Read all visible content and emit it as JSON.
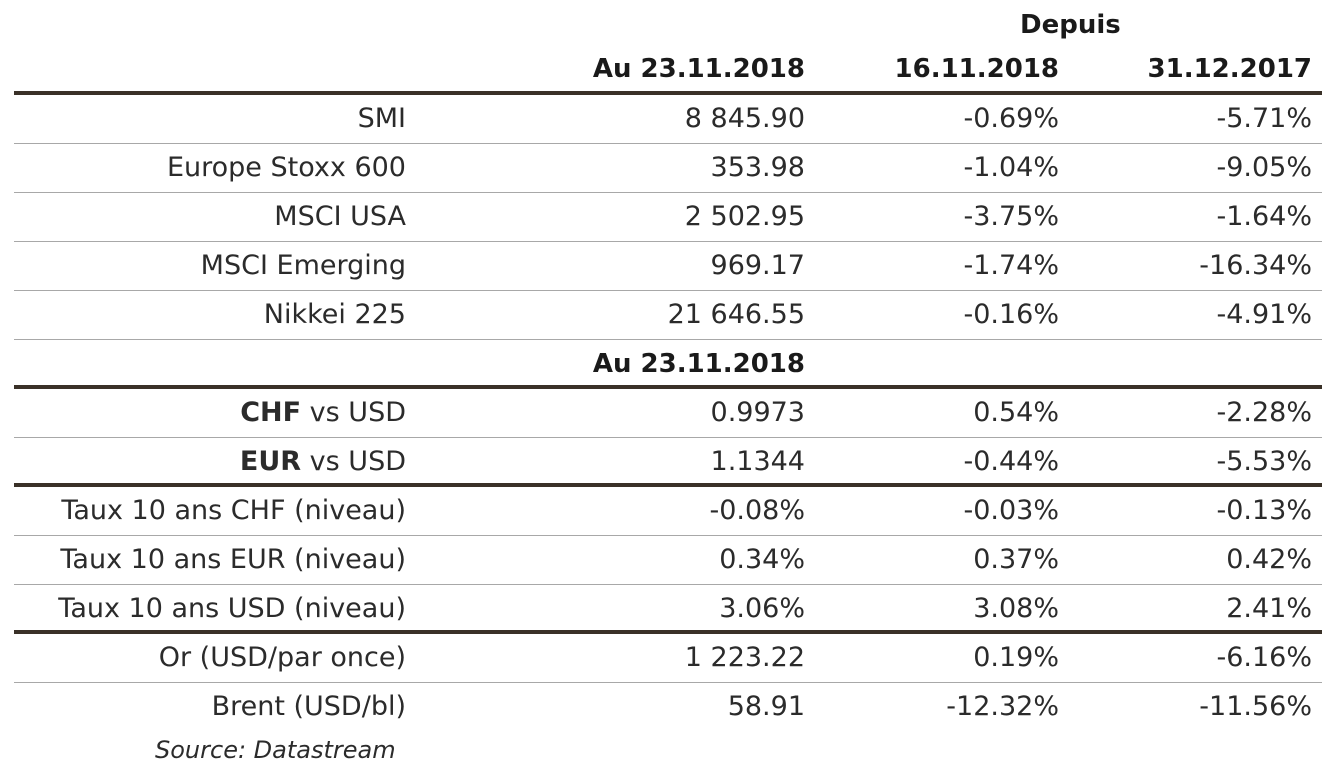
{
  "header": {
    "depuis": "Depuis",
    "col1": "Au 23.11.2018",
    "col2": "16.11.2018",
    "col3": "31.12.2017"
  },
  "rows_indices": [
    {
      "label": "SMI",
      "v1": "8 845.90",
      "v2": "-0.69%",
      "v3": "-5.71%"
    },
    {
      "label": "Europe Stoxx 600",
      "v1": "353.98",
      "v2": "-1.04%",
      "v3": "-9.05%"
    },
    {
      "label": "MSCI USA",
      "v1": "2 502.95",
      "v2": "-3.75%",
      "v3": "-1.64%"
    },
    {
      "label": "MSCI Emerging",
      "v1": "969.17",
      "v2": "-1.74%",
      "v3": "-16.34%"
    },
    {
      "label": "Nikkei 225",
      "v1": "21 646.55",
      "v2": "-0.16%",
      "v3": "-4.91%"
    }
  ],
  "subheader": {
    "label": "Au 23.11.2018"
  },
  "rows_fx": [
    {
      "currency": "CHF",
      "rest": " vs USD",
      "v1": "0.9973",
      "v2": "0.54%",
      "v3": "-2.28%"
    },
    {
      "currency": "EUR",
      "rest": " vs USD",
      "v1": "1.1344",
      "v2": "-0.44%",
      "v3": "-5.53%"
    }
  ],
  "rows_rates": [
    {
      "label": "Taux 10 ans CHF (niveau)",
      "v1": "-0.08%",
      "v2": "-0.03%",
      "v3": "-0.13%"
    },
    {
      "label": "Taux 10 ans EUR (niveau)",
      "v1": "0.34%",
      "v2": "0.37%",
      "v3": "0.42%"
    },
    {
      "label": "Taux 10 ans USD (niveau)",
      "v1": "3.06%",
      "v2": "3.08%",
      "v3": "2.41%"
    }
  ],
  "rows_commodities": [
    {
      "label": "Or (USD/par once)",
      "v1": "1 223.22",
      "v2": "0.19%",
      "v3": "-6.16%"
    },
    {
      "label": "Brent (USD/bl)",
      "v1": "58.91",
      "v2": "-12.32%",
      "v3": "-11.56%"
    }
  ],
  "source": "Source: Datastream"
}
